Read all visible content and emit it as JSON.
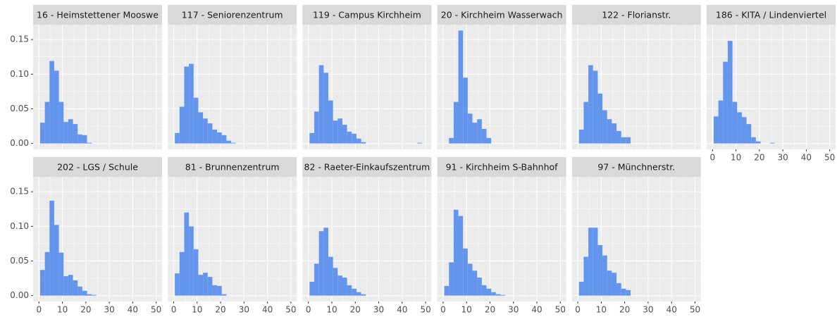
{
  "chart_data": [
    {
      "type": "histogram",
      "title": "16 - Heimstettener Mooswe",
      "color": "#6495ed",
      "grid": true,
      "bins": [
        0.5,
        2.5,
        4.5,
        6.5,
        8.5,
        10.5,
        12.5,
        14.5,
        16.5,
        18.5,
        20.5,
        22.5,
        24.5,
        26.5,
        28.5,
        30.5,
        32.5,
        34.5,
        36.5,
        38.5,
        40.5,
        42.5,
        44.5,
        46.5,
        48.5,
        50.5
      ],
      "values": [
        0.03,
        0.06,
        0.119,
        0.105,
        0.06,
        0.031,
        0.035,
        0.028,
        0.013,
        0.012,
        0.001,
        0,
        0,
        0,
        0,
        0,
        0,
        0,
        0,
        0,
        0,
        0,
        0,
        0,
        0
      ],
      "xlim": [
        -2.5,
        52.5
      ],
      "xticks": [
        0,
        10,
        20,
        30,
        40,
        50
      ],
      "ylim": [
        -0.0085,
        0.1715
      ],
      "yticks": [
        {
          "value": 0,
          "label": "0.00"
        },
        {
          "value": 0.05,
          "label": "0.05"
        },
        {
          "value": 0.1,
          "label": "0.10"
        },
        {
          "value": 0.15,
          "label": "0.15"
        }
      ]
    },
    {
      "type": "histogram",
      "title": "117 - Seniorenzentrum",
      "color": "#6495ed",
      "grid": true,
      "bins": [
        0.5,
        2.5,
        4.5,
        6.5,
        8.5,
        10.5,
        12.5,
        14.5,
        16.5,
        18.5,
        20.5,
        22.5,
        24.5,
        26.5,
        28.5,
        30.5,
        32.5,
        34.5,
        36.5,
        38.5,
        40.5,
        42.5,
        44.5,
        46.5,
        48.5,
        50.5
      ],
      "values": [
        0.015,
        0.053,
        0.111,
        0.115,
        0.066,
        0.045,
        0.036,
        0.029,
        0.02,
        0.016,
        0.012,
        0.004,
        0.001,
        0,
        0,
        0,
        0,
        0,
        0,
        0,
        0,
        0,
        0,
        0,
        0
      ],
      "xlim": [
        -2.5,
        52.5
      ],
      "xticks": [
        0,
        10,
        20,
        30,
        40,
        50
      ],
      "ylim": [
        -0.0085,
        0.1715
      ],
      "yticks": [
        {
          "value": 0,
          "label": "0.00"
        },
        {
          "value": 0.05,
          "label": "0.05"
        },
        {
          "value": 0.1,
          "label": "0.10"
        },
        {
          "value": 0.15,
          "label": "0.15"
        }
      ]
    },
    {
      "type": "histogram",
      "title": "119 - Campus Kirchheim",
      "color": "#6495ed",
      "grid": true,
      "bins": [
        0.5,
        2.5,
        4.5,
        6.5,
        8.5,
        10.5,
        12.5,
        14.5,
        16.5,
        18.5,
        20.5,
        22.5,
        24.5,
        26.5,
        28.5,
        30.5,
        32.5,
        34.5,
        36.5,
        38.5,
        40.5,
        42.5,
        44.5,
        46.5,
        48.5,
        50.5
      ],
      "values": [
        0.015,
        0.046,
        0.113,
        0.102,
        0.062,
        0.033,
        0.036,
        0.027,
        0.017,
        0.014,
        0.007,
        0.002,
        0,
        0,
        0,
        0,
        0,
        0,
        0,
        0,
        0,
        0,
        0,
        0.001,
        0
      ],
      "xlim": [
        -2.5,
        52.5
      ],
      "xticks": [
        0,
        10,
        20,
        30,
        40,
        50
      ],
      "ylim": [
        -0.0085,
        0.1715
      ],
      "yticks": [
        {
          "value": 0,
          "label": "0.00"
        },
        {
          "value": 0.05,
          "label": "0.05"
        },
        {
          "value": 0.1,
          "label": "0.10"
        },
        {
          "value": 0.15,
          "label": "0.15"
        }
      ]
    },
    {
      "type": "histogram",
      "title": "20 - Kirchheim Wasserwach",
      "color": "#6495ed",
      "grid": true,
      "bins": [
        0.5,
        2.5,
        4.5,
        6.5,
        8.5,
        10.5,
        12.5,
        14.5,
        16.5,
        18.5,
        20.5,
        22.5,
        24.5,
        26.5,
        28.5,
        30.5,
        32.5,
        34.5,
        36.5,
        38.5,
        40.5,
        42.5,
        44.5,
        46.5,
        48.5,
        50.5
      ],
      "values": [
        0,
        0.008,
        0.06,
        0.163,
        0.095,
        0.043,
        0.03,
        0.035,
        0.021,
        0.008,
        0,
        0,
        0,
        0,
        0,
        0,
        0,
        0,
        0,
        0,
        0,
        0,
        0,
        0,
        0
      ],
      "xlim": [
        -2.5,
        52.5
      ],
      "xticks": [
        0,
        10,
        20,
        30,
        40,
        50
      ],
      "ylim": [
        -0.0085,
        0.1715
      ],
      "yticks": [
        {
          "value": 0,
          "label": "0.00"
        },
        {
          "value": 0.05,
          "label": "0.05"
        },
        {
          "value": 0.1,
          "label": "0.10"
        },
        {
          "value": 0.15,
          "label": "0.15"
        }
      ]
    },
    {
      "type": "histogram",
      "title": "122 - Florianstr.",
      "color": "#6495ed",
      "grid": true,
      "bins": [
        0.5,
        2.5,
        4.5,
        6.5,
        8.5,
        10.5,
        12.5,
        14.5,
        16.5,
        18.5,
        20.5,
        22.5,
        24.5,
        26.5,
        28.5,
        30.5,
        32.5,
        34.5,
        36.5,
        38.5,
        40.5,
        42.5,
        44.5,
        46.5,
        48.5,
        50.5
      ],
      "values": [
        0.02,
        0.06,
        0.113,
        0.105,
        0.072,
        0.048,
        0.035,
        0.029,
        0.018,
        0.009,
        0.009,
        0,
        0,
        0,
        0,
        0,
        0,
        0,
        0,
        0,
        0,
        0,
        0,
        0,
        0
      ],
      "xlim": [
        -2.5,
        52.5
      ],
      "xticks": [
        0,
        10,
        20,
        30,
        40,
        50
      ],
      "ylim": [
        -0.0085,
        0.1715
      ],
      "yticks": [
        {
          "value": 0,
          "label": "0.00"
        },
        {
          "value": 0.05,
          "label": "0.05"
        },
        {
          "value": 0.1,
          "label": "0.10"
        },
        {
          "value": 0.15,
          "label": "0.15"
        }
      ]
    },
    {
      "type": "histogram",
      "title": "186 - KITA / Lindenviertel",
      "color": "#6495ed",
      "grid": true,
      "bins": [
        0.5,
        2.5,
        4.5,
        6.5,
        8.5,
        10.5,
        12.5,
        14.5,
        16.5,
        18.5,
        20.5,
        22.5,
        24.5,
        26.5,
        28.5,
        30.5,
        32.5,
        34.5,
        36.5,
        38.5,
        40.5,
        42.5,
        44.5,
        46.5,
        48.5,
        50.5
      ],
      "values": [
        0.039,
        0.062,
        0.118,
        0.148,
        0.06,
        0.045,
        0.038,
        0.028,
        0.009,
        0.003,
        0,
        0,
        0.001,
        0,
        0,
        0,
        0,
        0,
        0,
        0,
        0,
        0,
        0,
        0,
        0
      ],
      "xlim": [
        -2.5,
        52.5
      ],
      "xticks": [
        0,
        10,
        20,
        30,
        40,
        50
      ],
      "ylim": [
        -0.0085,
        0.1715
      ],
      "yticks": [
        {
          "value": 0,
          "label": "0.00"
        },
        {
          "value": 0.05,
          "label": "0.05"
        },
        {
          "value": 0.1,
          "label": "0.10"
        },
        {
          "value": 0.15,
          "label": "0.15"
        }
      ]
    },
    {
      "type": "histogram",
      "title": "202 - LGS / Schule",
      "color": "#6495ed",
      "grid": true,
      "bins": [
        0.5,
        2.5,
        4.5,
        6.5,
        8.5,
        10.5,
        12.5,
        14.5,
        16.5,
        18.5,
        20.5,
        22.5,
        24.5,
        26.5,
        28.5,
        30.5,
        32.5,
        34.5,
        36.5,
        38.5,
        40.5,
        42.5,
        44.5,
        46.5,
        48.5,
        50.5
      ],
      "values": [
        0.037,
        0.063,
        0.137,
        0.102,
        0.062,
        0.028,
        0.03,
        0.022,
        0.013,
        0.007,
        0.002,
        0.001,
        0,
        0,
        0,
        0,
        0,
        0,
        0,
        0,
        0,
        0,
        0,
        0,
        0
      ],
      "xlim": [
        -2.5,
        52.5
      ],
      "xticks": [
        0,
        10,
        20,
        30,
        40,
        50
      ],
      "ylim": [
        -0.0085,
        0.1715
      ],
      "yticks": [
        {
          "value": 0,
          "label": "0.00"
        },
        {
          "value": 0.05,
          "label": "0.05"
        },
        {
          "value": 0.1,
          "label": "0.10"
        },
        {
          "value": 0.15,
          "label": "0.15"
        }
      ]
    },
    {
      "type": "histogram",
      "title": "81 - Brunnenzentrum",
      "color": "#6495ed",
      "grid": true,
      "bins": [
        0.5,
        2.5,
        4.5,
        6.5,
        8.5,
        10.5,
        12.5,
        14.5,
        16.5,
        18.5,
        20.5,
        22.5,
        24.5,
        26.5,
        28.5,
        30.5,
        32.5,
        34.5,
        36.5,
        38.5,
        40.5,
        42.5,
        44.5,
        46.5,
        48.5,
        50.5
      ],
      "values": [
        0.032,
        0.063,
        0.12,
        0.1,
        0.067,
        0.03,
        0.033,
        0.027,
        0.015,
        0.014,
        0.002,
        0,
        0,
        0,
        0,
        0,
        0,
        0,
        0,
        0,
        0,
        0,
        0,
        0,
        0
      ],
      "xlim": [
        -2.5,
        52.5
      ],
      "xticks": [
        0,
        10,
        20,
        30,
        40,
        50
      ],
      "ylim": [
        -0.0085,
        0.1715
      ],
      "yticks": [
        {
          "value": 0,
          "label": "0.00"
        },
        {
          "value": 0.05,
          "label": "0.05"
        },
        {
          "value": 0.1,
          "label": "0.10"
        },
        {
          "value": 0.15,
          "label": "0.15"
        }
      ]
    },
    {
      "type": "histogram",
      "title": "82 - Raeter-Einkaufszentrum",
      "color": "#6495ed",
      "grid": true,
      "bins": [
        0.5,
        2.5,
        4.5,
        6.5,
        8.5,
        10.5,
        12.5,
        14.5,
        16.5,
        18.5,
        20.5,
        22.5,
        24.5,
        26.5,
        28.5,
        30.5,
        32.5,
        34.5,
        36.5,
        38.5,
        40.5,
        42.5,
        44.5,
        46.5,
        48.5,
        50.5
      ],
      "values": [
        0.02,
        0.046,
        0.093,
        0.098,
        0.056,
        0.04,
        0.029,
        0.026,
        0.015,
        0.01,
        0.005,
        0.002,
        0,
        0,
        0,
        0,
        0,
        0,
        0,
        0,
        0,
        0,
        0,
        0,
        0
      ],
      "xlim": [
        -2.5,
        52.5
      ],
      "xticks": [
        0,
        10,
        20,
        30,
        40,
        50
      ],
      "ylim": [
        -0.0085,
        0.1715
      ],
      "yticks": [
        {
          "value": 0,
          "label": "0.00"
        },
        {
          "value": 0.05,
          "label": "0.05"
        },
        {
          "value": 0.1,
          "label": "0.10"
        },
        {
          "value": 0.15,
          "label": "0.15"
        }
      ]
    },
    {
      "type": "histogram",
      "title": "91 - Kirchheim S-Bahnhof",
      "color": "#6495ed",
      "grid": true,
      "bins": [
        0.5,
        2.5,
        4.5,
        6.5,
        8.5,
        10.5,
        12.5,
        14.5,
        16.5,
        18.5,
        20.5,
        22.5,
        24.5,
        26.5,
        28.5,
        30.5,
        32.5,
        34.5,
        36.5,
        38.5,
        40.5,
        42.5,
        44.5,
        46.5,
        48.5,
        50.5
      ],
      "values": [
        0.014,
        0.048,
        0.124,
        0.115,
        0.068,
        0.046,
        0.036,
        0.026,
        0.015,
        0.01,
        0.005,
        0.002,
        0.001,
        0,
        0,
        0,
        0,
        0,
        0,
        0,
        0,
        0,
        0,
        0,
        0
      ],
      "xlim": [
        -2.5,
        52.5
      ],
      "xticks": [
        0,
        10,
        20,
        30,
        40,
        50
      ],
      "ylim": [
        -0.0085,
        0.1715
      ],
      "yticks": [
        {
          "value": 0,
          "label": "0.00"
        },
        {
          "value": 0.05,
          "label": "0.05"
        },
        {
          "value": 0.1,
          "label": "0.10"
        },
        {
          "value": 0.15,
          "label": "0.15"
        }
      ]
    },
    {
      "type": "histogram",
      "title": "97 - Münchnerstr.",
      "color": "#6495ed",
      "grid": true,
      "bins": [
        0.5,
        2.5,
        4.5,
        6.5,
        8.5,
        10.5,
        12.5,
        14.5,
        16.5,
        18.5,
        20.5,
        22.5,
        24.5,
        26.5,
        28.5,
        30.5,
        32.5,
        34.5,
        36.5,
        38.5,
        40.5,
        42.5,
        44.5,
        46.5,
        48.5,
        50.5
      ],
      "values": [
        0.02,
        0.056,
        0.098,
        0.098,
        0.073,
        0.058,
        0.036,
        0.033,
        0.018,
        0.01,
        0.008,
        0,
        0,
        0,
        0,
        0,
        0,
        0,
        0,
        0,
        0,
        0,
        0,
        0,
        0
      ],
      "xlim": [
        -2.5,
        52.5
      ],
      "xticks": [
        0,
        10,
        20,
        30,
        40,
        50
      ],
      "ylim": [
        -0.0085,
        0.1715
      ],
      "yticks": [
        {
          "value": 0,
          "label": "0.00"
        },
        {
          "value": 0.05,
          "label": "0.05"
        },
        {
          "value": 0.1,
          "label": "0.10"
        },
        {
          "value": 0.15,
          "label": "0.15"
        }
      ]
    }
  ]
}
